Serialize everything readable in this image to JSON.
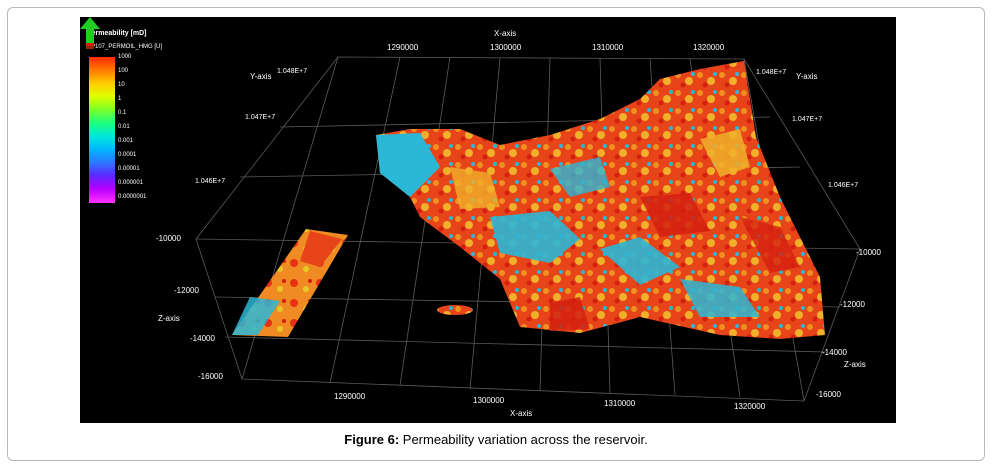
{
  "figure": {
    "caption_label": "Figure 6:",
    "caption_text": " Permeability variation across the reservoir."
  },
  "legend": {
    "title": "Permeability [mD]",
    "property": "EP107_PERMOIL_HMG [U]",
    "labels": [
      "1000",
      "100",
      "10",
      "1",
      "0.1",
      "0.01",
      "0.001",
      "0.0001",
      "0.00001",
      "0.000001",
      "0.0000001"
    ],
    "colors": [
      "#ff2a00",
      "#ff7a00",
      "#ffcc00",
      "#dfff00",
      "#7dff2a",
      "#20ff7a",
      "#00e8d8",
      "#00b8ff",
      "#2a7aff",
      "#5a2aff",
      "#ff33ff"
    ]
  },
  "axes": {
    "x_axis_title_top": "X-axis",
    "x_axis_title_bottom": "X-axis",
    "y_axis_title_left": "Y-axis",
    "y_axis_title_right": "Y-axis",
    "z_axis_title_left": "Z-axis",
    "z_axis_title_right": "Z-axis",
    "x_ticks_top": [
      "1290000",
      "1300000",
      "1310000",
      "1320000"
    ],
    "x_ticks_bottom": [
      "1290000",
      "1300000",
      "1310000",
      "1320000"
    ],
    "y_ticks_left": [
      "1.048E+7",
      "1.047E+7",
      "1.046E+7"
    ],
    "y_ticks_right": [
      "1.048E+7",
      "1.047E+7",
      "1.046E+7"
    ],
    "z_ticks_left": [
      "-10000",
      "-12000",
      "-14000",
      "-16000"
    ],
    "z_ticks_right": [
      "-10000",
      "-12000",
      "-14000",
      "-16000"
    ]
  },
  "surface_colors": {
    "red": "#e82c12",
    "orange": "#f0881f",
    "yellow": "#e8c829",
    "cyan": "#2bb7d6",
    "grid": "#5a5a5a"
  },
  "north_arrow": {
    "icon": "north-arrow-icon",
    "color": "#22cc22"
  }
}
